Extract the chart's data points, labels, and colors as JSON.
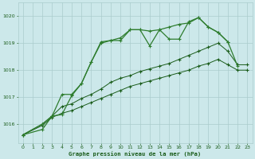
{
  "title": "Graphe pression niveau de la mer (hPa)",
  "background_color": "#cce8ea",
  "grid_color": "#aacccc",
  "line_color_dark": "#1a5c1a",
  "line_color_light": "#2e7d2e",
  "xlim": [
    -0.5,
    23.5
  ],
  "ylim": [
    1015.3,
    1020.5
  ],
  "yticks": [
    1016,
    1017,
    1018,
    1019,
    1020
  ],
  "xticks": [
    0,
    1,
    2,
    3,
    4,
    5,
    6,
    7,
    8,
    9,
    10,
    11,
    12,
    13,
    14,
    15,
    16,
    17,
    18,
    19,
    20,
    21,
    22,
    23
  ],
  "series1_x": [
    0,
    2,
    3,
    4,
    5,
    6,
    7,
    8,
    9,
    10,
    11,
    12,
    13,
    14,
    15,
    16,
    17,
    18,
    19,
    20,
    21
  ],
  "series1_y": [
    1015.6,
    1015.8,
    1016.3,
    1016.35,
    1017.05,
    1017.5,
    1018.3,
    1019.05,
    1019.1,
    1019.1,
    1019.5,
    1019.5,
    1018.9,
    1019.5,
    1019.15,
    1019.15,
    1019.8,
    1019.95,
    1019.6,
    1019.4,
    1019.05
  ],
  "series2_x": [
    0,
    2,
    3,
    4,
    5,
    6,
    7,
    8,
    9,
    10,
    11,
    12,
    13,
    14,
    15,
    16,
    17,
    18,
    19,
    20,
    21,
    22
  ],
  "series2_y": [
    1015.6,
    1016.0,
    1016.3,
    1017.1,
    1017.1,
    1017.5,
    1018.3,
    1019.0,
    1019.1,
    1019.2,
    1019.5,
    1019.5,
    1019.45,
    1019.5,
    1019.6,
    1019.7,
    1019.75,
    1019.95,
    1019.6,
    1019.4,
    1019.05,
    1018.15
  ],
  "series3_x": [
    0,
    2,
    3,
    4,
    5,
    6,
    7,
    8,
    9,
    10,
    11,
    12,
    13,
    14,
    15,
    16,
    17,
    18,
    19,
    20,
    21,
    22,
    23
  ],
  "series3_y": [
    1015.6,
    1016.0,
    1016.3,
    1016.65,
    1016.75,
    1016.95,
    1017.1,
    1017.3,
    1017.55,
    1017.7,
    1017.8,
    1017.95,
    1018.05,
    1018.15,
    1018.25,
    1018.4,
    1018.55,
    1018.7,
    1018.85,
    1019.0,
    1018.7,
    1018.2,
    1018.2
  ],
  "series4_x": [
    0,
    2,
    3,
    4,
    5,
    6,
    7,
    8,
    9,
    10,
    11,
    12,
    13,
    14,
    15,
    16,
    17,
    18,
    19,
    20,
    21,
    22,
    23
  ],
  "series4_y": [
    1015.6,
    1015.95,
    1016.25,
    1016.4,
    1016.5,
    1016.65,
    1016.8,
    1016.95,
    1017.1,
    1017.25,
    1017.4,
    1017.5,
    1017.6,
    1017.7,
    1017.8,
    1017.9,
    1018.0,
    1018.15,
    1018.25,
    1018.4,
    1018.2,
    1018.0,
    1018.0
  ]
}
